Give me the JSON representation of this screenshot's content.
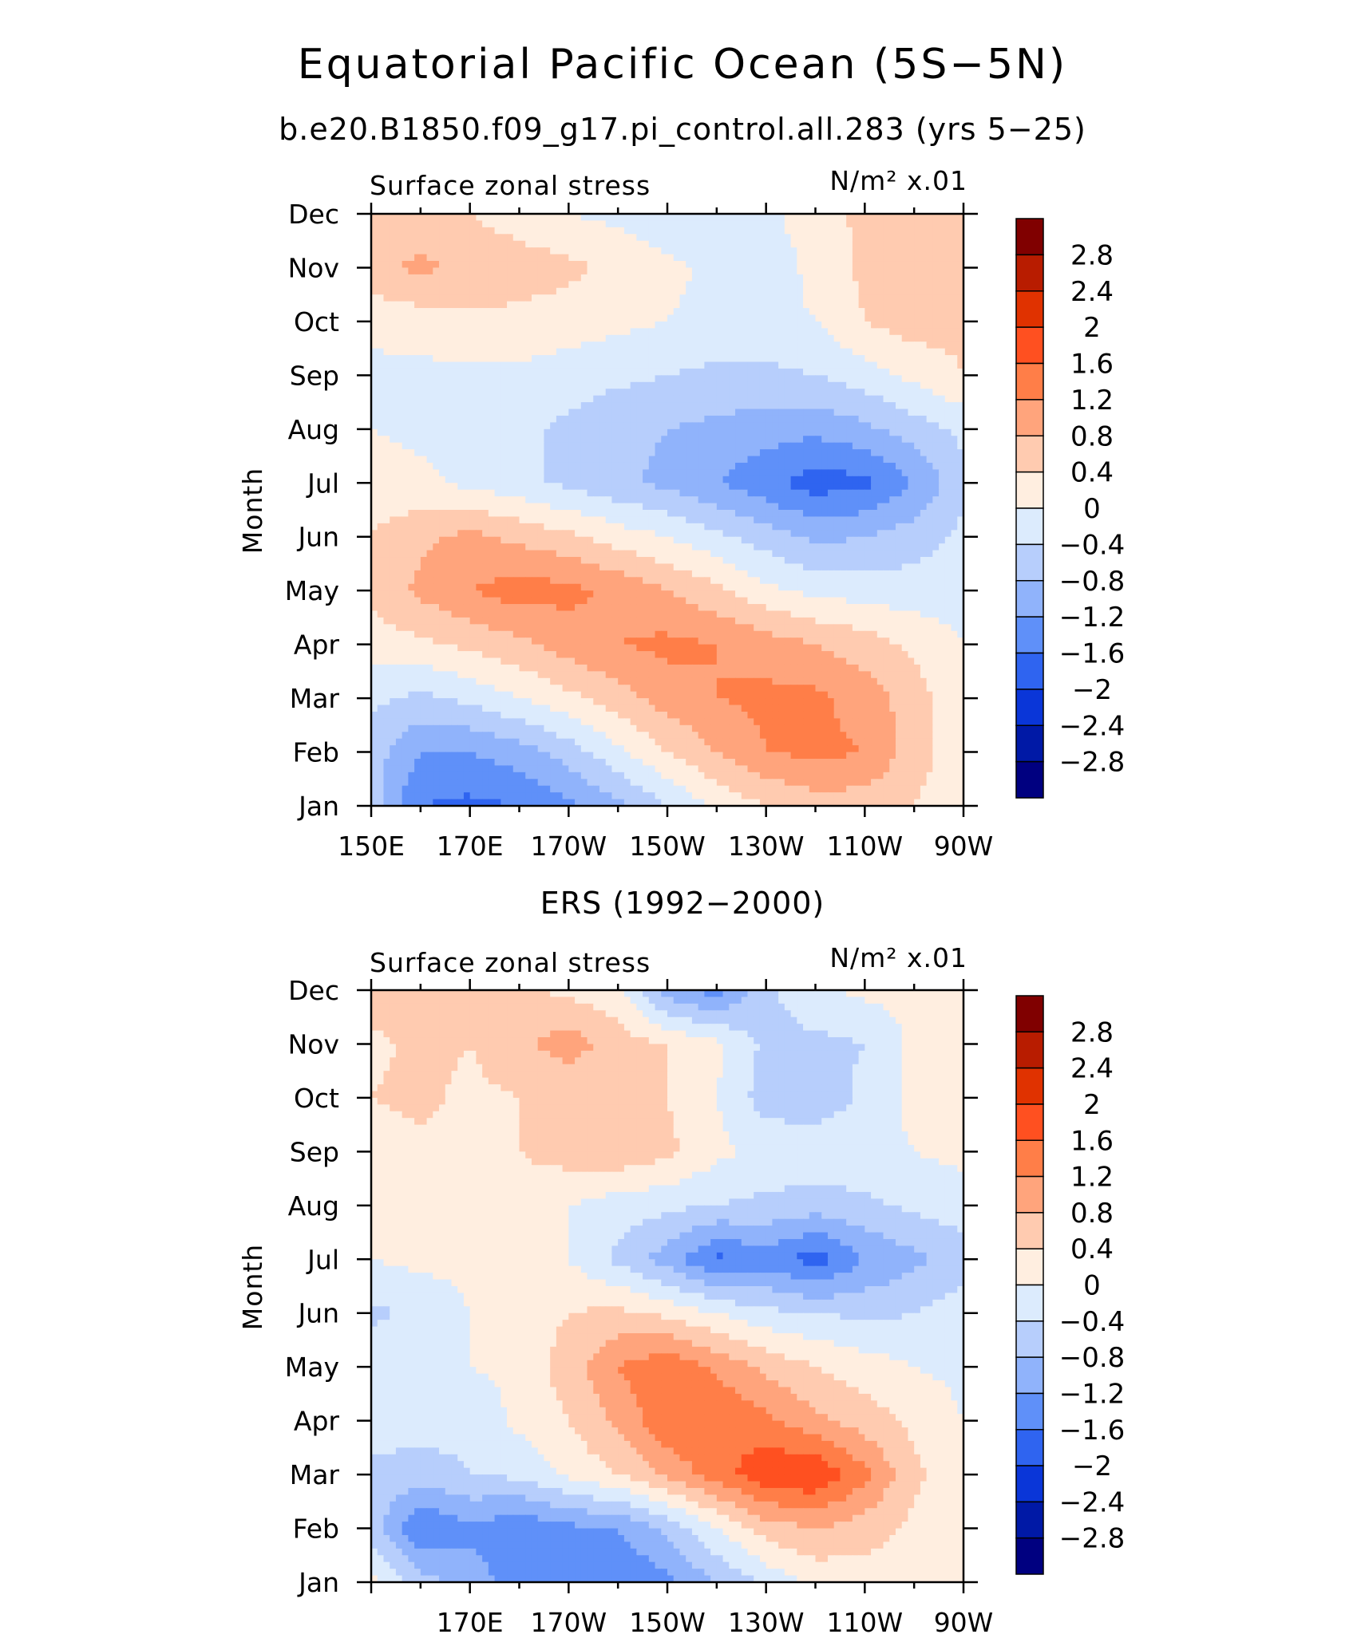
{
  "figure": {
    "title": "Equatorial Pacific Ocean (5S−5N)"
  },
  "colorbar": {
    "levels": [
      "2.8",
      "2.4",
      "2",
      "1.6",
      "1.2",
      "0.8",
      "0.4",
      "0",
      "−0.4",
      "−0.8",
      "−1.2",
      "−1.6",
      "−2",
      "−2.4",
      "−2.8"
    ],
    "colors": [
      "#800000",
      "#b81c00",
      "#e03200",
      "#ff5020",
      "#ff7e48",
      "#ffa47c",
      "#ffcbb0",
      "#ffeee0",
      "#dcebfd",
      "#b7cefc",
      "#90b3fb",
      "#5f90f9",
      "#2f64f0",
      "#0a36d8",
      "#0019a6",
      "#000080"
    ]
  },
  "chart_data": [
    {
      "type": "heatmap",
      "title": "b.e20.B1850.f09_g17.pi_control.all.283 (yrs 5−25)",
      "left_label": "Surface zonal stress",
      "right_label": "N/m² x.01",
      "ylabel": "Month",
      "xlabel": "",
      "x_ticks": [
        "150E",
        "170E",
        "170W",
        "150W",
        "130W",
        "110W",
        "90W"
      ],
      "y_ticks": [
        "Jan",
        "Feb",
        "Mar",
        "Apr",
        "May",
        "Jun",
        "Jul",
        "Aug",
        "Sep",
        "Oct",
        "Nov",
        "Dec"
      ],
      "xlim": [
        150,
        270
      ],
      "ylim": [
        1,
        12
      ],
      "x_axis_values": [
        150,
        160,
        170,
        180,
        190,
        200,
        210,
        220,
        230,
        240,
        250,
        260,
        270
      ],
      "values": [
        [
          -0.6,
          -1.6,
          -1.7,
          -1.6,
          -1.3,
          -0.9,
          -0.4,
          0.1,
          0.4,
          0.6,
          0.6,
          0.4,
          0.1
        ],
        [
          -0.6,
          -1.2,
          -1.2,
          -1.0,
          -0.6,
          -0.1,
          0.4,
          0.8,
          1.2,
          1.3,
          1.2,
          0.6,
          0.1
        ],
        [
          -0.3,
          -0.5,
          -0.3,
          0.0,
          0.3,
          0.6,
          1.0,
          1.2,
          1.3,
          1.3,
          1.0,
          0.6,
          0.1
        ],
        [
          0.2,
          0.3,
          0.5,
          0.7,
          1.0,
          1.2,
          1.3,
          1.2,
          1.0,
          0.8,
          0.6,
          0.3,
          0.0
        ],
        [
          0.5,
          0.9,
          1.2,
          1.4,
          1.3,
          1.1,
          0.8,
          0.5,
          0.1,
          -0.1,
          -0.2,
          -0.2,
          -0.2
        ],
        [
          0.4,
          0.7,
          0.9,
          0.7,
          0.5,
          0.2,
          0.0,
          -0.3,
          -0.6,
          -0.9,
          -0.8,
          -0.6,
          -0.3
        ],
        [
          0.2,
          0.1,
          -0.1,
          -0.3,
          -0.5,
          -0.7,
          -0.9,
          -1.2,
          -1.5,
          -1.8,
          -1.7,
          -1.2,
          -0.5
        ],
        [
          0.0,
          -0.1,
          -0.2,
          -0.3,
          -0.5,
          -0.7,
          -0.8,
          -0.9,
          -1.0,
          -1.1,
          -0.9,
          -0.6,
          -0.3
        ],
        [
          -0.1,
          -0.1,
          -0.1,
          -0.1,
          -0.2,
          -0.3,
          -0.4,
          -0.5,
          -0.5,
          -0.4,
          -0.2,
          0.1,
          0.4
        ],
        [
          0.1,
          0.2,
          0.3,
          0.3,
          0.2,
          0.1,
          0.0,
          -0.1,
          -0.1,
          0.0,
          0.4,
          0.6,
          0.5
        ],
        [
          0.7,
          0.9,
          0.7,
          0.6,
          0.5,
          0.3,
          0.1,
          -0.1,
          -0.2,
          0.1,
          0.5,
          0.6,
          0.5
        ],
        [
          0.4,
          0.5,
          0.4,
          0.2,
          0.0,
          -0.1,
          -0.3,
          -0.4,
          -0.1,
          0.2,
          0.5,
          0.6,
          0.5
        ]
      ]
    },
    {
      "type": "heatmap",
      "title": "ERS (1992−2000)",
      "left_label": "Surface zonal stress",
      "right_label": "N/m² x.01",
      "ylabel": "Month",
      "xlabel": "",
      "x_ticks": [
        "170E",
        "170W",
        "150W",
        "130W",
        "110W",
        "90W"
      ],
      "y_ticks": [
        "Jan",
        "Feb",
        "Mar",
        "Apr",
        "May",
        "Jun",
        "Jul",
        "Aug",
        "Sep",
        "Oct",
        "Nov",
        "Dec"
      ],
      "xlim": [
        150,
        270
      ],
      "ylim": [
        1,
        12
      ],
      "x_axis_values": [
        150,
        160,
        170,
        180,
        190,
        200,
        210,
        220,
        230,
        240,
        250,
        260,
        270
      ],
      "values": [
        [
          0.1,
          -0.6,
          -1.0,
          -1.4,
          -1.6,
          -1.6,
          -1.3,
          -0.8,
          -0.3,
          0.1,
          0.2,
          0.1,
          0.0
        ],
        [
          -0.6,
          -1.6,
          -1.3,
          -1.5,
          -1.3,
          -1.2,
          -0.7,
          0.0,
          0.6,
          0.8,
          0.6,
          0.3,
          0.0
        ],
        [
          -0.5,
          -0.6,
          -0.4,
          -0.3,
          0.1,
          0.4,
          0.9,
          1.4,
          1.9,
          2.0,
          1.3,
          0.5,
          0.1
        ],
        [
          -0.2,
          -0.2,
          -0.3,
          0.1,
          0.4,
          0.9,
          1.5,
          1.6,
          1.3,
          0.9,
          0.6,
          0.3,
          0.0
        ],
        [
          -0.1,
          -0.1,
          0.0,
          0.1,
          0.6,
          1.2,
          1.5,
          1.1,
          0.7,
          0.4,
          0.2,
          0.0,
          -0.1
        ],
        [
          -0.5,
          -0.3,
          0.0,
          0.2,
          0.4,
          0.5,
          0.3,
          0.0,
          -0.3,
          -0.4,
          -0.5,
          -0.4,
          -0.2
        ],
        [
          0.0,
          0.1,
          0.1,
          0.1,
          0.0,
          -0.5,
          -1.0,
          -1.7,
          -1.4,
          -1.8,
          -1.2,
          -0.9,
          -0.6
        ],
        [
          0.1,
          0.2,
          0.3,
          0.2,
          0.0,
          -0.2,
          -0.3,
          -0.4,
          -0.5,
          -0.6,
          -0.5,
          -0.3,
          -0.2
        ],
        [
          0.2,
          0.3,
          0.3,
          0.4,
          0.6,
          0.7,
          0.5,
          0.1,
          -0.1,
          -0.1,
          -0.1,
          0.0,
          0.1
        ],
        [
          0.4,
          0.5,
          0.3,
          0.4,
          0.5,
          0.4,
          0.4,
          0.0,
          -0.6,
          -0.7,
          -0.3,
          0.1,
          0.2
        ],
        [
          0.3,
          0.5,
          0.4,
          0.7,
          1.0,
          0.6,
          0.4,
          0.1,
          -0.5,
          -0.5,
          -0.4,
          0.1,
          0.3
        ],
        [
          0.6,
          0.8,
          0.6,
          0.5,
          0.3,
          0.1,
          -1.0,
          -1.4,
          -0.5,
          -0.1,
          0.1,
          0.1,
          0.2
        ]
      ]
    }
  ]
}
